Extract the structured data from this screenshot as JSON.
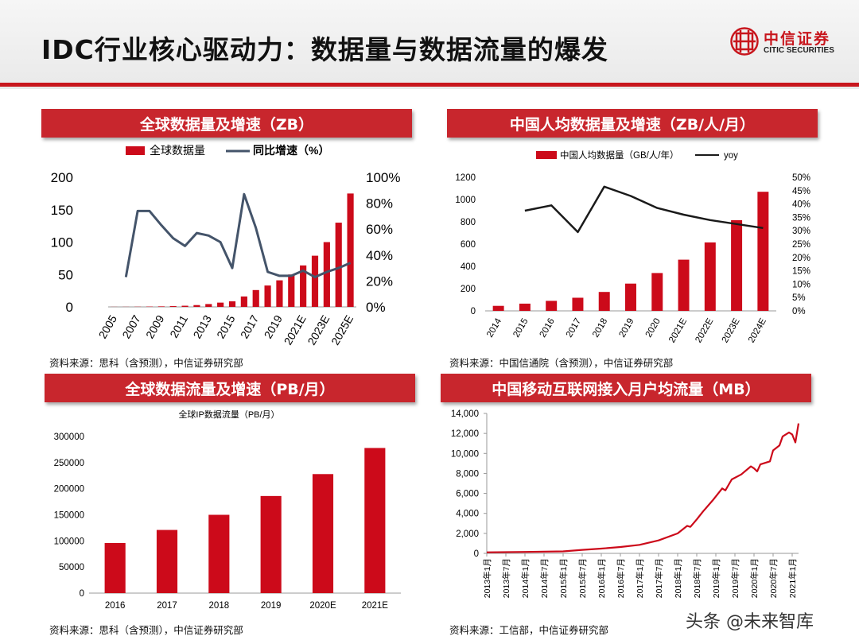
{
  "header": {
    "title": "IDC行业核心驱动力：数据量与数据流量的爆发"
  },
  "logo": {
    "cn": "中信证券",
    "en": "CITIC SECURITIES"
  },
  "panels": {
    "p1": {
      "title": "全球数据量及增速（ZB）",
      "source": "资料来源：思科（含预测），中信证券研究部"
    },
    "p2": {
      "title": "中国人均数据量及增速（ZB/人/月）",
      "source": "资料来源：中国信通院（含预测），中信证券研究部"
    },
    "p3": {
      "title": "全球数据流量及增速（PB/月）",
      "source": "资料来源：思科（含预测），中信证券研究部"
    },
    "p4": {
      "title": "中国移动互联网接入月户均流量（MB）",
      "source": "资料来源：工信部，中信证券研究部"
    }
  },
  "watermark": "头条 @未来智库",
  "colors": {
    "brand_red": "#c8161d",
    "bar_red": "#cc0a1a",
    "line_gray": "#44546a",
    "line_black": "#1a1a1a"
  },
  "chart_data": [
    {
      "type": "bar",
      "legend": [
        "全球数据量",
        "同比增速（%）"
      ],
      "categories": [
        "2005",
        "2006",
        "2007",
        "2008",
        "2009",
        "2010",
        "2011",
        "2012",
        "2013",
        "2014",
        "2015",
        "2016",
        "2017",
        "2018",
        "2019",
        "2020",
        "2021E",
        "2022E",
        "2023E",
        "2024E",
        "2025E"
      ],
      "tick_labels": [
        "2005",
        "2007",
        "2009",
        "2011",
        "2013",
        "2015",
        "2017",
        "2019",
        "2021E",
        "2023E",
        "2025E"
      ],
      "series": [
        {
          "name": "全球数据量",
          "type": "bar",
          "axis": "left",
          "values": [
            0.13,
            0.16,
            0.28,
            0.49,
            0.8,
            1.2,
            1.8,
            2.8,
            4.4,
            6.6,
            8.6,
            16.1,
            26,
            33,
            41,
            50,
            64,
            79,
            100,
            130,
            175
          ]
        },
        {
          "name": "同比增速（%）",
          "type": "line",
          "axis": "right",
          "values": [
            null,
            23,
            74,
            74,
            63,
            53,
            47,
            57,
            55,
            50,
            30,
            87,
            61,
            27,
            24,
            24,
            28,
            23,
            27,
            30,
            34
          ]
        }
      ],
      "ylim_left": [
        0,
        200
      ],
      "yticks_left": [
        "0",
        "50",
        "100",
        "150",
        "200"
      ],
      "ylim_right": [
        0,
        100
      ],
      "yticks_right": [
        "0%",
        "20%",
        "40%",
        "60%",
        "80%",
        "100%"
      ]
    },
    {
      "type": "bar",
      "legend": [
        "中国人均数据量（GB/人/年）",
        "yoy"
      ],
      "categories": [
        "2014",
        "2015",
        "2016",
        "2017",
        "2018",
        "2019",
        "2020",
        "2021E",
        "2022E",
        "2023E",
        "2024E"
      ],
      "series": [
        {
          "name": "中国人均数据量（GB/人/年）",
          "type": "bar",
          "axis": "left",
          "values": [
            45,
            65,
            90,
            118,
            170,
            245,
            340,
            460,
            615,
            815,
            1070
          ]
        },
        {
          "name": "yoy",
          "type": "line",
          "axis": "right",
          "values": [
            null,
            37.5,
            39.5,
            29.5,
            46.5,
            43,
            38.5,
            36,
            34,
            32.5,
            31
          ]
        }
      ],
      "ylim_left": [
        0,
        1200
      ],
      "yticks_left": [
        "0",
        "200",
        "400",
        "600",
        "800",
        "1000",
        "1200"
      ],
      "ylim_right": [
        0,
        50
      ],
      "yticks_right": [
        "0%",
        "5%",
        "10%",
        "15%",
        "20%",
        "25%",
        "30%",
        "35%",
        "40%",
        "45%",
        "50%"
      ]
    },
    {
      "type": "bar",
      "title": "全球IP数据流量（PB/月）",
      "categories": [
        "2016",
        "2017",
        "2018",
        "2019",
        "2020E",
        "2021E"
      ],
      "series": [
        {
          "name": "全球IP数据流量（PB/月）",
          "values": [
            96000,
            121000,
            150000,
            186000,
            228000,
            278000
          ]
        }
      ],
      "ylim": [
        0,
        300000
      ],
      "yticks": [
        "0",
        "50000",
        "100000",
        "150000",
        "200000",
        "250000",
        "300000"
      ]
    },
    {
      "type": "line",
      "x_start": "2013年1月",
      "x_end": "2021年3月",
      "tick_labels": [
        "2013年1月",
        "2013年7月",
        "2014年1月",
        "2014年7月",
        "2015年1月",
        "2015年7月",
        "2016年1月",
        "2016年7月",
        "2017年1月",
        "2017年7月",
        "2018年1月",
        "2018年7月",
        "2019年1月",
        "2019年7月",
        "2020年1月",
        "2020年7月",
        "2021年1月"
      ],
      "series": [
        {
          "name": "中国移动互联网接入月户均流量",
          "anchors": [
            [
              "2013年1月",
              100
            ],
            [
              "2014年1月",
              140
            ],
            [
              "2015年1月",
              200
            ],
            [
              "2015年7月",
              350
            ],
            [
              "2016年1月",
              480
            ],
            [
              "2016年7月",
              640
            ],
            [
              "2017年1月",
              850
            ],
            [
              "2017年7月",
              1300
            ],
            [
              "2018年1月",
              2000
            ],
            [
              "2018年4月",
              2750
            ],
            [
              "2018年5月",
              2650
            ],
            [
              "2018年7月",
              3400
            ],
            [
              "2018年9月",
              4200
            ],
            [
              "2018年12月",
              5300
            ],
            [
              "2019年3月",
              6500
            ],
            [
              "2019年4月",
              6300
            ],
            [
              "2019年6月",
              7400
            ],
            [
              "2019年9月",
              7900
            ],
            [
              "2019年12月",
              8700
            ],
            [
              "2020年1月",
              8500
            ],
            [
              "2020年2月",
              8200
            ],
            [
              "2020年3月",
              8900
            ],
            [
              "2020年6月",
              9200
            ],
            [
              "2020年7月",
              10300
            ],
            [
              "2020年9月",
              10800
            ],
            [
              "2020年10月",
              11700
            ],
            [
              "2020年12月",
              12100
            ],
            [
              "2021年1月",
              11900
            ],
            [
              "2021年2月",
              11100
            ],
            [
              "2021年3月",
              13000
            ]
          ]
        }
      ],
      "ylim": [
        0,
        14000
      ],
      "yticks": [
        "0",
        "2,000",
        "4,000",
        "6,000",
        "8,000",
        "10,000",
        "12,000",
        "14,000"
      ]
    }
  ]
}
